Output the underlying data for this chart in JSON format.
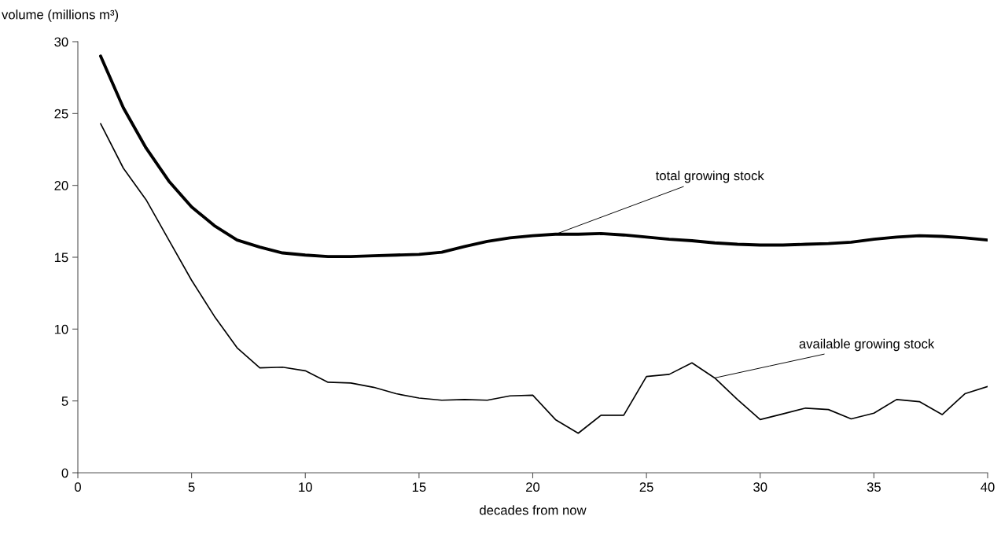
{
  "chart_data": {
    "type": "line",
    "ylabel": "volume (millions m³)",
    "xlabel": "decades from now",
    "x": [
      1,
      2,
      3,
      4,
      5,
      6,
      7,
      8,
      9,
      10,
      11,
      12,
      13,
      14,
      15,
      16,
      17,
      18,
      19,
      20,
      21,
      22,
      23,
      24,
      25,
      26,
      27,
      28,
      29,
      30,
      31,
      32,
      33,
      34,
      35,
      36,
      37,
      38,
      39,
      40
    ],
    "series": [
      {
        "color": "#000000",
        "values": [
          29.0,
          25.4,
          22.6,
          20.3,
          18.5,
          17.2,
          16.2,
          15.7,
          15.3,
          15.15,
          15.05,
          15.05,
          15.1,
          15.15,
          15.2,
          15.35,
          15.75,
          16.1,
          16.35,
          16.5,
          16.6,
          16.6,
          16.65,
          16.55,
          16.4,
          16.25,
          16.15,
          16.0,
          15.9,
          15.85,
          15.85,
          15.9,
          15.95,
          16.05,
          16.25,
          16.4,
          16.5,
          16.45,
          16.35,
          16.2
        ]
      },
      {
        "color": "#000000",
        "values": [
          24.3,
          21.2,
          19.0,
          16.2,
          13.4,
          10.9,
          8.7,
          7.3,
          7.35,
          7.1,
          6.3,
          6.25,
          5.95,
          5.5,
          5.2,
          5.05,
          5.1,
          5.05,
          5.35,
          5.4,
          3.7,
          2.75,
          4.0,
          4.0,
          6.7,
          6.85,
          7.65,
          6.6,
          5.1,
          3.7,
          4.1,
          4.5,
          4.4,
          3.75,
          4.15,
          5.1,
          4.95,
          4.05,
          5.5,
          6.0
        ]
      }
    ],
    "annotations": [
      {
        "text": "total growing stock",
        "x": 21,
        "y": 16.6
      },
      {
        "text": "available growing stock",
        "x": 28,
        "y": 6.6
      }
    ],
    "xlim": [
      0,
      40
    ],
    "xticks": [
      0,
      5,
      10,
      15,
      20,
      25,
      30,
      35,
      40
    ],
    "ylim": [
      0,
      30
    ],
    "yticks": [
      0,
      5,
      10,
      15,
      20,
      25,
      30
    ],
    "grid": false,
    "legend": false,
    "marker": "none",
    "line_style": "solid"
  }
}
